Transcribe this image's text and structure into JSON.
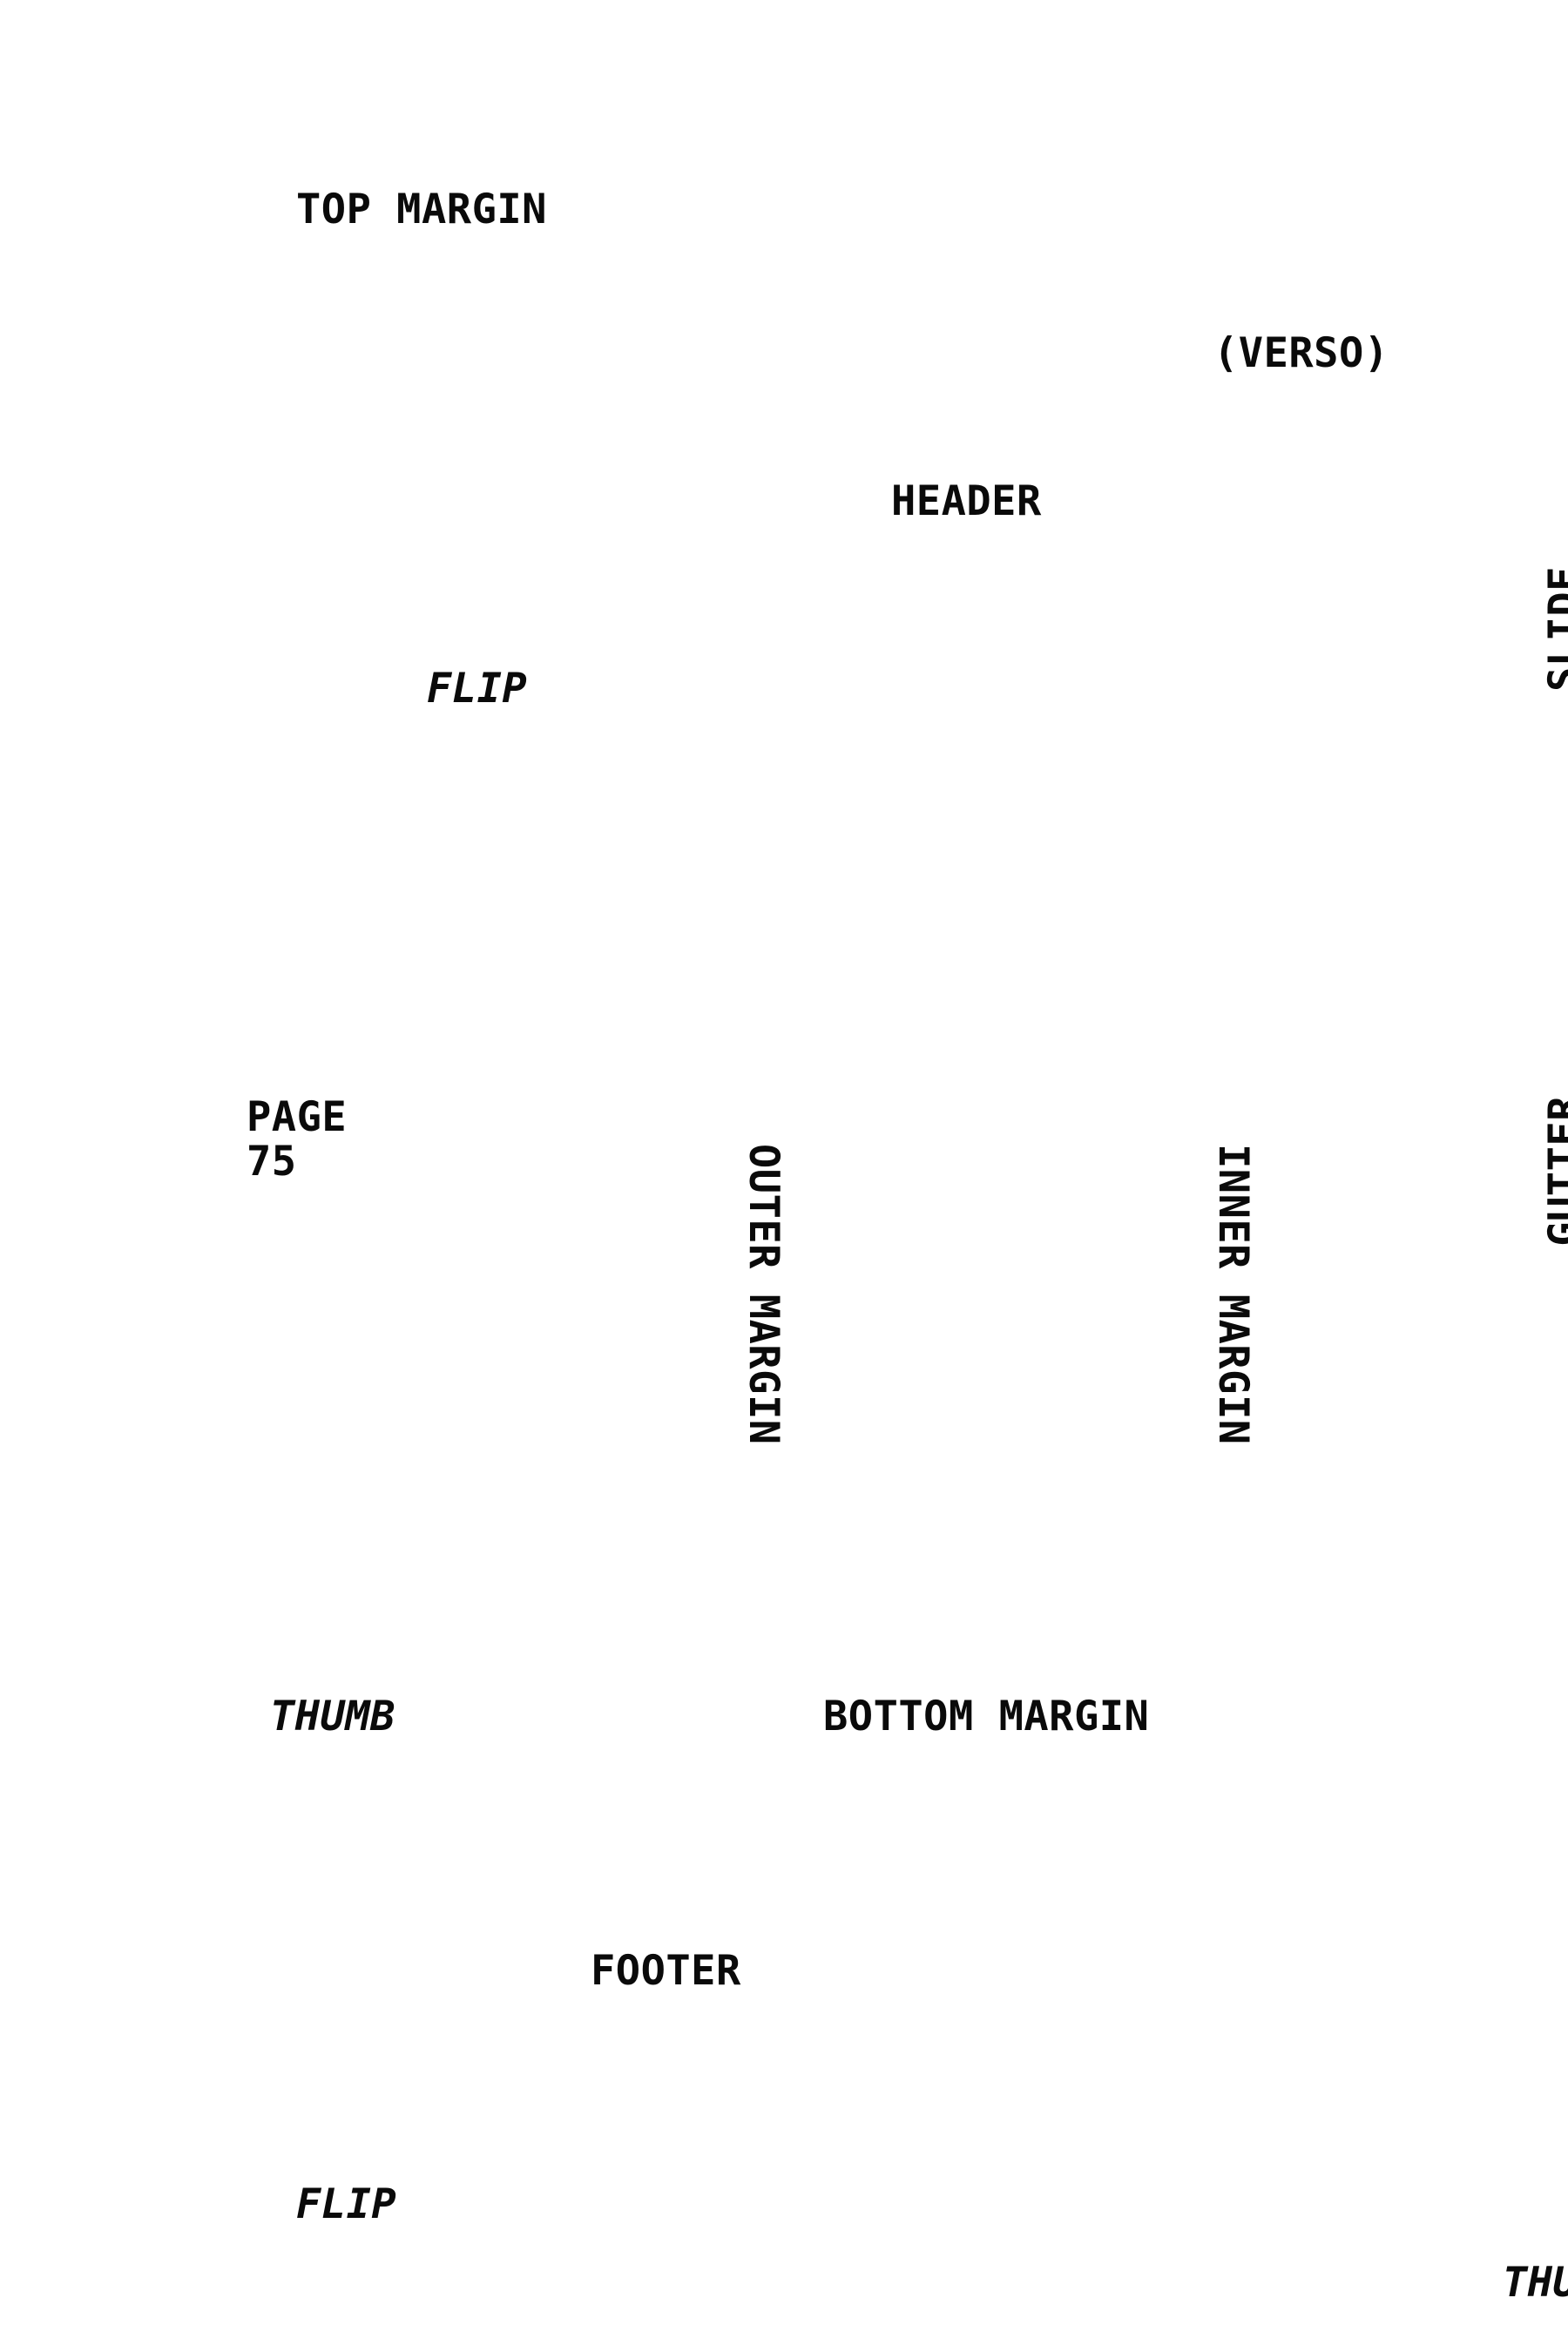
{
  "labels": {
    "top_margin": "TOP MARGIN",
    "verso": "(VERSO)",
    "header": "HEADER",
    "flip_top": "FLIP",
    "slide": "SLIDE",
    "page_word": "PAGE",
    "page_number": "75",
    "outer_margin": "OUTER MARGIN",
    "inner_margin": "INNER MARGIN",
    "gutter": "GUTTER",
    "thumb_left": "THUMB",
    "bottom_margin": "BOTTOM MARGIN",
    "footer": "FOOTER",
    "flip_bottom": "FLIP",
    "thumb_right": "THUMB"
  }
}
